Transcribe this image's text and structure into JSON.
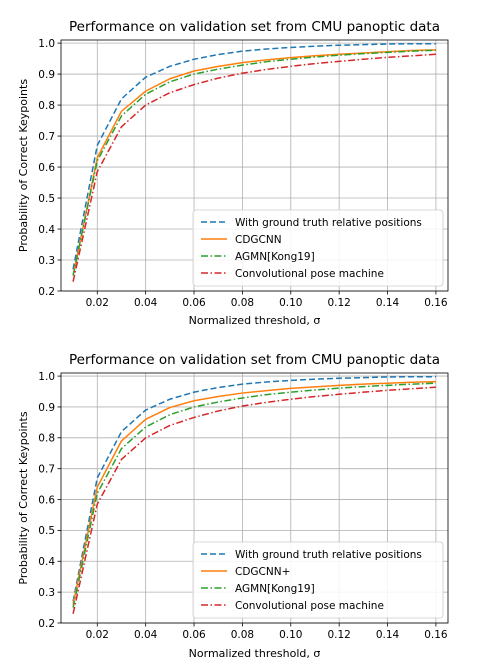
{
  "chart_data": [
    {
      "type": "line",
      "title": "Performance on validation set from CMU panoptic data",
      "xlabel": "Normalized threshold, σ",
      "ylabel": "Probability of Correct Keypoints",
      "xlim": [
        0.005,
        0.165
      ],
      "ylim": [
        0.2,
        1.01
      ],
      "xticks": [
        "0.02",
        "0.04",
        "0.06",
        "0.08",
        "0.10",
        "0.12",
        "0.14",
        "0.16"
      ],
      "yticks": [
        "0.2",
        "0.3",
        "0.4",
        "0.5",
        "0.6",
        "0.7",
        "0.8",
        "0.9",
        "1.0"
      ],
      "grid": true,
      "legend": "lower-right",
      "x": [
        0.01,
        0.02,
        0.03,
        0.04,
        0.05,
        0.06,
        0.07,
        0.08,
        0.09,
        0.1,
        0.11,
        0.12,
        0.13,
        0.14,
        0.15,
        0.16
      ],
      "series": [
        {
          "name": "With ground truth relative positions",
          "color": "#1f77b4",
          "dash": "dashed",
          "values": [
            0.27,
            0.67,
            0.82,
            0.89,
            0.925,
            0.948,
            0.963,
            0.974,
            0.981,
            0.986,
            0.99,
            0.993,
            0.995,
            0.997,
            0.998,
            0.998
          ]
        },
        {
          "name": "CDGCNN",
          "color": "#ff7f0e",
          "dash": "solid",
          "values": [
            0.25,
            0.63,
            0.78,
            0.845,
            0.885,
            0.91,
            0.925,
            0.937,
            0.946,
            0.953,
            0.959,
            0.964,
            0.968,
            0.972,
            0.976,
            0.978
          ]
        },
        {
          "name": "AGMN[Kong19]",
          "color": "#2ca02c",
          "dash": "dashdot",
          "values": [
            0.25,
            0.62,
            0.765,
            0.835,
            0.875,
            0.9,
            0.916,
            0.929,
            0.94,
            0.948,
            0.955,
            0.961,
            0.966,
            0.97,
            0.974,
            0.977
          ]
        },
        {
          "name": "Convolutional pose machine",
          "color": "#d62728",
          "dash": "dashdot",
          "values": [
            0.23,
            0.585,
            0.73,
            0.8,
            0.84,
            0.866,
            0.887,
            0.903,
            0.915,
            0.925,
            0.934,
            0.941,
            0.948,
            0.954,
            0.959,
            0.964
          ]
        }
      ]
    },
    {
      "type": "line",
      "title": "Performance on validation set from CMU panoptic data",
      "xlabel": "Normalized threshold, σ",
      "ylabel": "Probability of Correct Keypoints",
      "xlim": [
        0.005,
        0.165
      ],
      "ylim": [
        0.2,
        1.01
      ],
      "xticks": [
        "0.02",
        "0.04",
        "0.06",
        "0.08",
        "0.10",
        "0.12",
        "0.14",
        "0.16"
      ],
      "yticks": [
        "0.2",
        "0.3",
        "0.4",
        "0.5",
        "0.6",
        "0.7",
        "0.8",
        "0.9",
        "1.0"
      ],
      "grid": true,
      "legend": "lower-right",
      "x": [
        0.01,
        0.02,
        0.03,
        0.04,
        0.05,
        0.06,
        0.07,
        0.08,
        0.09,
        0.1,
        0.11,
        0.12,
        0.13,
        0.14,
        0.15,
        0.16
      ],
      "series": [
        {
          "name": "With ground truth relative positions",
          "color": "#1f77b4",
          "dash": "dashed",
          "values": [
            0.27,
            0.67,
            0.82,
            0.89,
            0.925,
            0.948,
            0.963,
            0.974,
            0.981,
            0.986,
            0.99,
            0.993,
            0.995,
            0.997,
            0.998,
            0.998
          ]
        },
        {
          "name": "CDGCNN+",
          "color": "#ff7f0e",
          "dash": "solid",
          "values": [
            0.26,
            0.64,
            0.79,
            0.86,
            0.898,
            0.92,
            0.934,
            0.945,
            0.953,
            0.96,
            0.965,
            0.97,
            0.974,
            0.977,
            0.98,
            0.982
          ]
        },
        {
          "name": "AGMN[Kong19]",
          "color": "#2ca02c",
          "dash": "dashdot",
          "values": [
            0.25,
            0.62,
            0.765,
            0.835,
            0.875,
            0.9,
            0.916,
            0.929,
            0.94,
            0.948,
            0.955,
            0.961,
            0.966,
            0.97,
            0.974,
            0.977
          ]
        },
        {
          "name": "Convolutional pose machine",
          "color": "#d62728",
          "dash": "dashdot",
          "values": [
            0.23,
            0.585,
            0.73,
            0.8,
            0.84,
            0.866,
            0.887,
            0.903,
            0.915,
            0.925,
            0.934,
            0.941,
            0.948,
            0.954,
            0.959,
            0.964
          ]
        }
      ]
    }
  ]
}
